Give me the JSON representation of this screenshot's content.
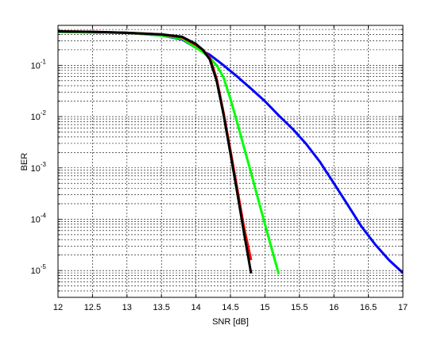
{
  "figure": {
    "background": "#ffffff",
    "axes_background": "#ffffff"
  },
  "chart_data": {
    "type": "line",
    "title": "",
    "xlabel": "SNR [dB]",
    "ylabel": "BER",
    "xlim": [
      12,
      17
    ],
    "ylim": [
      3e-06,
      0.6
    ],
    "yscale": "log",
    "grid": "major-and-minor, dashed",
    "legend": "none",
    "x_ticks": [
      12,
      12.5,
      13,
      13.5,
      14,
      14.5,
      15,
      15.5,
      16,
      16.5,
      17
    ],
    "x_tick_labels": [
      "12",
      "12.5",
      "13",
      "13.5",
      "14",
      "14.5",
      "15",
      "15.5",
      "16",
      "16.5",
      "17"
    ],
    "y_ticks": [
      {
        "value": 0.1,
        "base": "10",
        "exp": "-1"
      },
      {
        "value": 0.01,
        "base": "10",
        "exp": "-2"
      },
      {
        "value": 0.001,
        "base": "10",
        "exp": "-3"
      },
      {
        "value": 0.0001,
        "base": "10",
        "exp": "-4"
      },
      {
        "value": 1e-05,
        "base": "10",
        "exp": "-5"
      }
    ],
    "series": [
      {
        "color": "#0000ff",
        "x": [
          12.0,
          12.5,
          13.0,
          13.5,
          13.8,
          14.0,
          14.2,
          14.4,
          14.6,
          14.8,
          15.0,
          15.2,
          15.4,
          15.6,
          15.8,
          16.0,
          16.2,
          16.4,
          16.6,
          16.8,
          17.0
        ],
        "y": [
          0.45,
          0.44,
          0.43,
          0.38,
          0.32,
          0.22,
          0.16,
          0.1,
          0.06,
          0.035,
          0.02,
          0.0105,
          0.0058,
          0.0029,
          0.0013,
          0.0005,
          0.00019,
          7.2e-05,
          3.2e-05,
          1.6e-05,
          9e-06
        ]
      },
      {
        "color": "#00ff00",
        "x": [
          12.0,
          12.5,
          13.0,
          13.5,
          13.8,
          14.0,
          14.1,
          14.2,
          14.3,
          14.4,
          14.5,
          14.6,
          14.7,
          14.8,
          14.9,
          15.0,
          15.1,
          15.2
        ],
        "y": [
          0.45,
          0.44,
          0.43,
          0.38,
          0.33,
          0.22,
          0.18,
          0.14,
          0.1,
          0.058,
          0.022,
          0.0075,
          0.0024,
          0.0008,
          0.00025,
          8e-05,
          2.6e-05,
          8.5e-06
        ]
      },
      {
        "color": "#ff0000",
        "x": [
          12.0,
          12.5,
          13.0,
          13.5,
          13.8,
          14.0,
          14.1,
          14.2,
          14.3,
          14.4,
          14.5,
          14.6,
          14.7,
          14.8
        ],
        "y": [
          0.46,
          0.45,
          0.43,
          0.4,
          0.35,
          0.25,
          0.2,
          0.14,
          0.055,
          0.012,
          0.0022,
          0.00038,
          6.5e-05,
          1.6e-05
        ]
      },
      {
        "color": "#000000",
        "x": [
          12.0,
          12.5,
          13.0,
          13.5,
          13.8,
          14.0,
          14.1,
          14.2,
          14.3,
          14.4,
          14.5,
          14.6,
          14.7,
          14.8
        ],
        "y": [
          0.46,
          0.45,
          0.43,
          0.4,
          0.36,
          0.26,
          0.2,
          0.13,
          0.05,
          0.011,
          0.0019,
          0.00032,
          5e-05,
          8.8e-06
        ]
      }
    ]
  }
}
